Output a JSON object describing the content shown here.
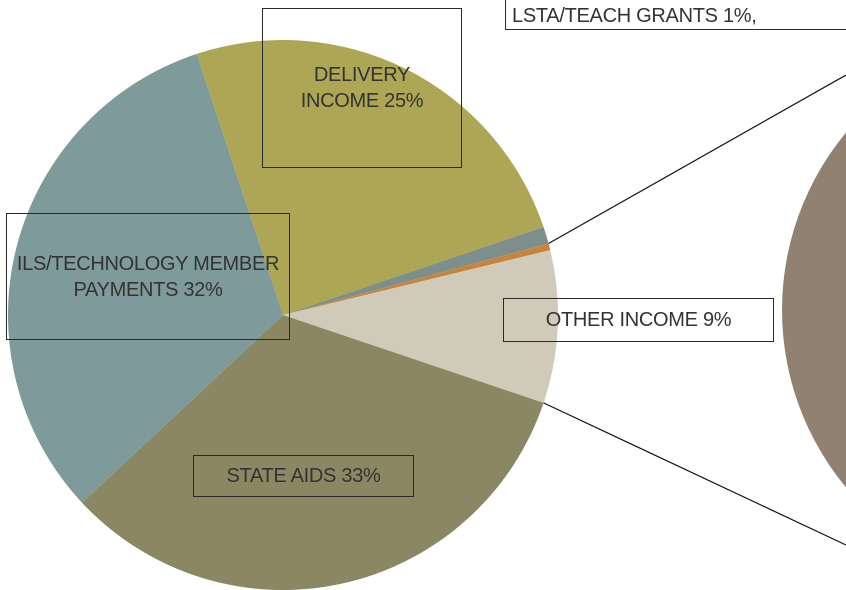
{
  "chart_data": {
    "type": "pie",
    "categories": [
      "DELIVERY INCOME",
      "LSTA/TEACH GRANTS",
      null,
      "OTHER INCOME",
      "STATE AIDS",
      "ILS/TECHNOLOGY MEMBER PAYMENTS"
    ],
    "values": [
      25,
      1,
      0.4,
      9,
      33,
      32
    ],
    "value_labels": [
      "25%",
      "1%,",
      null,
      "9%",
      "33%",
      "32%"
    ],
    "colors": [
      "#ada654",
      "#7d8f8c",
      "#c8843c",
      "#cfcbb8",
      "#8a8762",
      "#7f9a9a"
    ]
  }
}
